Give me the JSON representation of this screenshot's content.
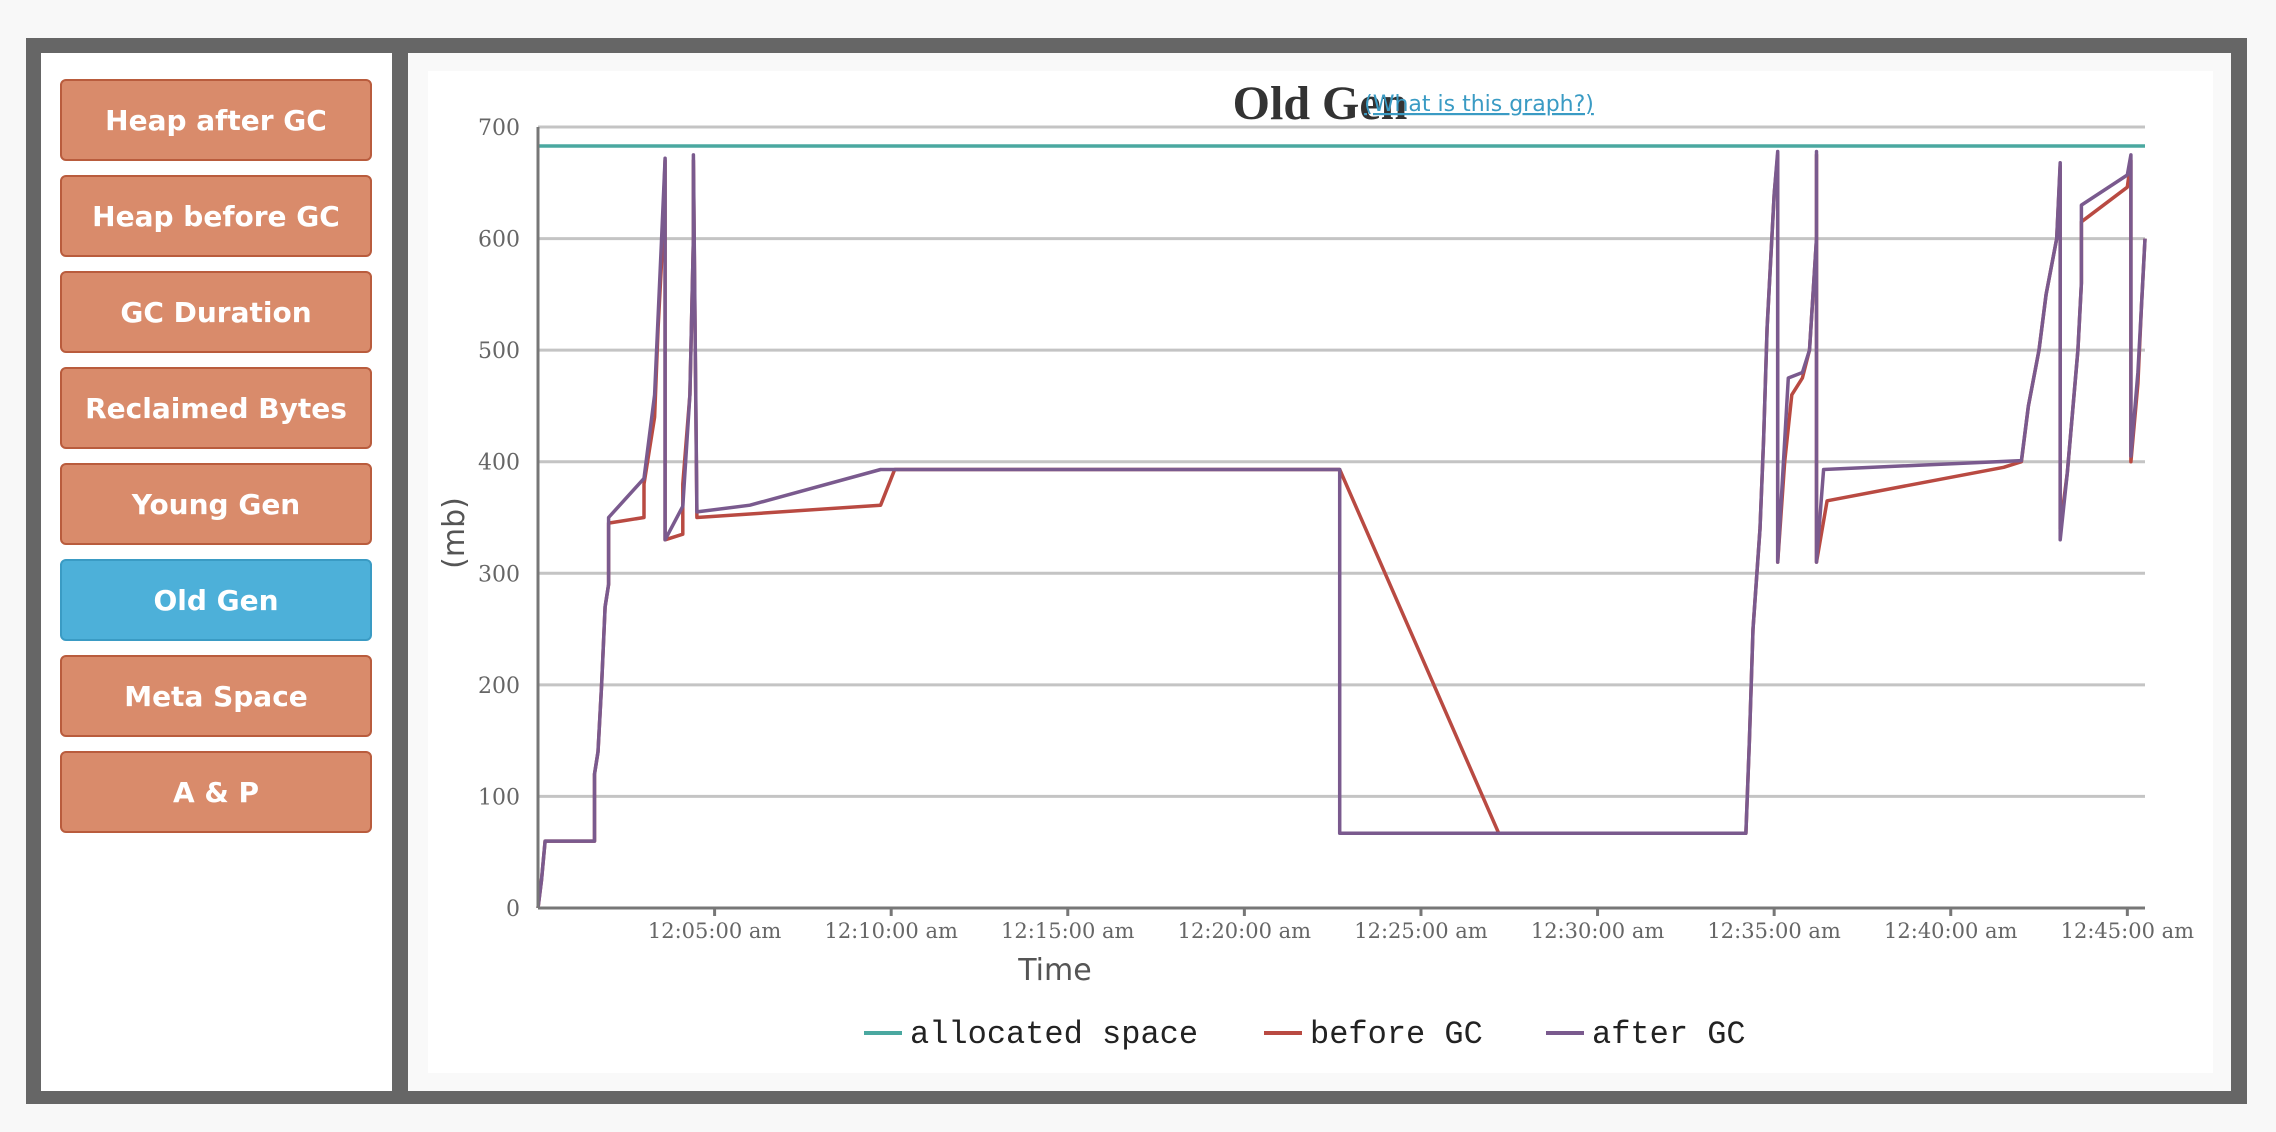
{
  "sidebar": {
    "items": [
      {
        "label": "Heap after GC",
        "active": false
      },
      {
        "label": "Heap before GC",
        "active": false
      },
      {
        "label": "GC Duration",
        "active": false
      },
      {
        "label": "Reclaimed Bytes",
        "active": false
      },
      {
        "label": "Young Gen",
        "active": false
      },
      {
        "label": "Old Gen",
        "active": true
      },
      {
        "label": "Meta Space",
        "active": false
      },
      {
        "label": "A & P",
        "active": false
      }
    ]
  },
  "header": {
    "title": "Old Gen",
    "help_link": "(What is this graph?)"
  },
  "colors": {
    "nav_button": "#d98b6b",
    "nav_button_active": "#4db0d9",
    "allocated": "#4aa8a0",
    "before": "#b94a42",
    "after": "#7a5a8e"
  },
  "chart_data": {
    "type": "line",
    "xlabel": "Time",
    "ylabel": "(mb)",
    "ylim": [
      0,
      700
    ],
    "yticks": [
      0,
      100,
      200,
      300,
      400,
      500,
      600,
      700
    ],
    "xlim_minutes": [
      0,
      45.5
    ],
    "xticks": [
      {
        "t": 5,
        "label": "12:05:00 am"
      },
      {
        "t": 10,
        "label": "12:10:00 am"
      },
      {
        "t": 15,
        "label": "12:15:00 am"
      },
      {
        "t": 20,
        "label": "12:20:00 am"
      },
      {
        "t": 25,
        "label": "12:25:00 am"
      },
      {
        "t": 30,
        "label": "12:30:00 am"
      },
      {
        "t": 35,
        "label": "12:35:00 am"
      },
      {
        "t": 40,
        "label": "12:40:00 am"
      },
      {
        "t": 45,
        "label": "12:45:00 am"
      }
    ],
    "grid": true,
    "legend": "bottom",
    "series": [
      {
        "name": "allocated space",
        "color": "#4aa8a0",
        "points": [
          [
            0,
            683
          ],
          [
            45.5,
            683
          ]
        ]
      },
      {
        "name": "before GC",
        "color": "#b94a42",
        "points": [
          [
            0,
            0
          ],
          [
            0.1,
            25
          ],
          [
            0.2,
            60
          ],
          [
            1.6,
            60
          ],
          [
            1.6,
            120
          ],
          [
            1.7,
            140
          ],
          [
            1.8,
            200
          ],
          [
            1.9,
            270
          ],
          [
            2.0,
            290
          ],
          [
            2.0,
            345
          ],
          [
            3.0,
            350
          ],
          [
            3.0,
            380
          ],
          [
            3.3,
            440
          ],
          [
            3.4,
            520
          ],
          [
            3.5,
            580
          ],
          [
            3.6,
            670
          ],
          [
            3.6,
            330
          ],
          [
            4.1,
            335
          ],
          [
            4.1,
            380
          ],
          [
            4.3,
            460
          ],
          [
            4.4,
            600
          ],
          [
            4.4,
            670
          ],
          [
            4.5,
            350
          ],
          [
            9.7,
            361
          ],
          [
            10.1,
            393
          ],
          [
            22.7,
            393
          ],
          [
            27.2,
            67
          ],
          [
            34.2,
            67
          ],
          [
            34.3,
            150
          ],
          [
            34.4,
            250
          ],
          [
            34.6,
            340
          ],
          [
            34.7,
            420
          ],
          [
            34.8,
            520
          ],
          [
            35.0,
            640
          ],
          [
            35.1,
            675
          ],
          [
            35.1,
            310
          ],
          [
            35.3,
            400
          ],
          [
            35.5,
            460
          ],
          [
            35.8,
            475
          ],
          [
            36.0,
            500
          ],
          [
            36.2,
            600
          ],
          [
            36.2,
            675
          ],
          [
            36.2,
            310
          ],
          [
            36.5,
            365
          ],
          [
            41.5,
            395
          ],
          [
            42.0,
            400
          ],
          [
            42.2,
            450
          ],
          [
            42.5,
            500
          ],
          [
            42.7,
            550
          ],
          [
            43.0,
            600
          ],
          [
            43.1,
            665
          ],
          [
            43.1,
            340
          ],
          [
            43.3,
            390
          ],
          [
            43.6,
            500
          ],
          [
            43.7,
            560
          ],
          [
            43.7,
            615
          ],
          [
            45.0,
            646
          ],
          [
            45.1,
            670
          ],
          [
            45.1,
            400
          ],
          [
            45.3,
            470
          ],
          [
            45.4,
            540
          ],
          [
            45.5,
            600
          ]
        ]
      },
      {
        "name": "after GC",
        "color": "#7a5a8e",
        "points": [
          [
            0,
            0
          ],
          [
            0.1,
            25
          ],
          [
            0.2,
            60
          ],
          [
            1.6,
            60
          ],
          [
            1.6,
            120
          ],
          [
            1.7,
            140
          ],
          [
            1.8,
            200
          ],
          [
            1.9,
            270
          ],
          [
            2.0,
            290
          ],
          [
            2.0,
            350
          ],
          [
            3.0,
            385
          ],
          [
            3.3,
            460
          ],
          [
            3.4,
            530
          ],
          [
            3.5,
            600
          ],
          [
            3.6,
            672
          ],
          [
            3.6,
            330
          ],
          [
            4.1,
            360
          ],
          [
            4.3,
            460
          ],
          [
            4.4,
            600
          ],
          [
            4.4,
            675
          ],
          [
            4.5,
            355
          ],
          [
            6.0,
            361
          ],
          [
            9.7,
            393
          ],
          [
            22.7,
            393
          ],
          [
            22.7,
            67
          ],
          [
            34.2,
            67
          ],
          [
            34.3,
            150
          ],
          [
            34.4,
            250
          ],
          [
            34.6,
            340
          ],
          [
            34.7,
            420
          ],
          [
            34.8,
            520
          ],
          [
            35.0,
            640
          ],
          [
            35.1,
            678
          ],
          [
            35.1,
            310
          ],
          [
            35.4,
            475
          ],
          [
            35.8,
            480
          ],
          [
            36.0,
            500
          ],
          [
            36.2,
            600
          ],
          [
            36.2,
            678
          ],
          [
            36.2,
            310
          ],
          [
            36.4,
            393
          ],
          [
            42.0,
            401
          ],
          [
            42.2,
            450
          ],
          [
            42.5,
            500
          ],
          [
            42.7,
            550
          ],
          [
            43.0,
            600
          ],
          [
            43.1,
            668
          ],
          [
            43.1,
            330
          ],
          [
            43.3,
            390
          ],
          [
            43.6,
            500
          ],
          [
            43.7,
            560
          ],
          [
            43.7,
            630
          ],
          [
            45.0,
            657
          ],
          [
            45.1,
            675
          ],
          [
            45.1,
            405
          ],
          [
            45.3,
            480
          ],
          [
            45.4,
            540
          ],
          [
            45.5,
            600
          ]
        ]
      }
    ]
  }
}
